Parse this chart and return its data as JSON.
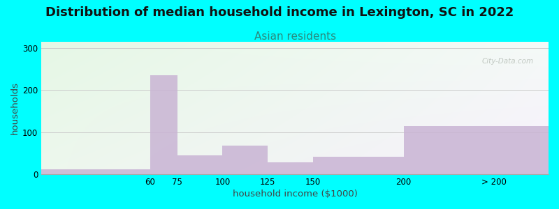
{
  "title": "Distribution of median household income in Lexington, SC in 2022",
  "subtitle": "Asian residents",
  "xlabel": "household income ($1000)",
  "ylabel": "households",
  "background_outer": "#00FFFF",
  "bar_color": "#C9B4D4",
  "bar_alpha": 0.85,
  "bar_lefts": [
    0,
    60,
    75,
    100,
    125,
    150,
    200
  ],
  "bar_widths": [
    60,
    15,
    25,
    25,
    25,
    50,
    80
  ],
  "bar_heights": [
    12,
    235,
    45,
    68,
    28,
    42,
    115
  ],
  "xtick_positions": [
    60,
    75,
    100,
    125,
    150,
    200,
    250
  ],
  "xtick_labels": [
    "60",
    "75",
    "100",
    "125",
    "150",
    "200",
    "> 200"
  ],
  "xlim": [
    0,
    280
  ],
  "yticks": [
    0,
    100,
    200,
    300
  ],
  "ylim": [
    0,
    315
  ],
  "title_fontsize": 13,
  "subtitle_fontsize": 11,
  "axis_label_fontsize": 9.5,
  "tick_fontsize": 8.5,
  "watermark_text": "City-Data.com",
  "grid_color": "#cccccc",
  "title_color": "#111111",
  "subtitle_color": "#2a8a7e",
  "ylabel_color": "#444444",
  "xlabel_color": "#444444"
}
